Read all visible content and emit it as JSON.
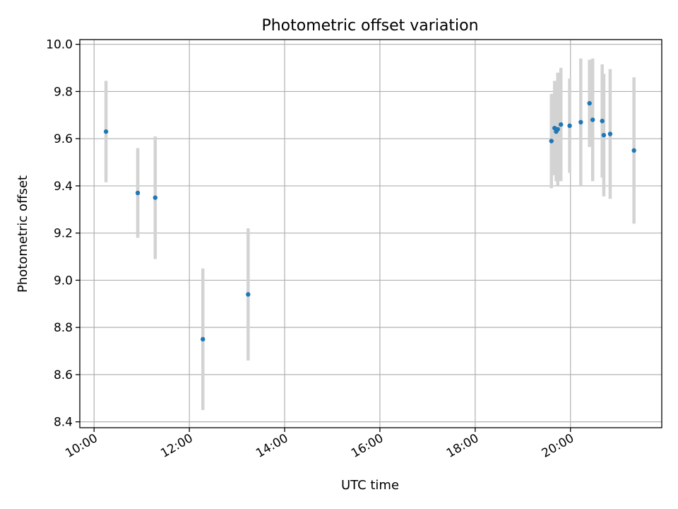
{
  "chart_data": {
    "type": "scatter",
    "title": "Photometric offset variation",
    "xlabel": "UTC time",
    "ylabel": "Photometric offset",
    "xlim": [
      "09:42",
      "21:55"
    ],
    "ylim": [
      8.375,
      10.02
    ],
    "x_ticks": [
      "10:00",
      "12:00",
      "14:00",
      "16:00",
      "18:00",
      "20:00"
    ],
    "y_ticks": [
      8.4,
      8.6,
      8.8,
      9.0,
      9.2,
      9.4,
      9.6,
      9.8,
      10.0
    ],
    "y_tick_labels": [
      "8.4",
      "8.6",
      "8.8",
      "9.0",
      "9.2",
      "9.4",
      "9.6",
      "9.8",
      "10.0"
    ],
    "grid": true,
    "point_color": "#1f77b4",
    "errorbar_color": "#d3d3d3",
    "points": [
      {
        "x": "10:15",
        "y": 9.63,
        "err": 0.215
      },
      {
        "x": "10:55",
        "y": 9.37,
        "err": 0.19
      },
      {
        "x": "11:17",
        "y": 9.35,
        "err": 0.26
      },
      {
        "x": "12:17",
        "y": 8.75,
        "err": 0.3
      },
      {
        "x": "13:14",
        "y": 8.94,
        "err": 0.28
      },
      {
        "x": "19:36",
        "y": 9.59,
        "err": 0.2
      },
      {
        "x": "19:40",
        "y": 9.645,
        "err": 0.2
      },
      {
        "x": "19:42",
        "y": 9.63,
        "err": 0.21
      },
      {
        "x": "19:44",
        "y": 9.64,
        "err": 0.24
      },
      {
        "x": "19:48",
        "y": 9.66,
        "err": 0.24
      },
      {
        "x": "19:59",
        "y": 9.655,
        "err": 0.2
      },
      {
        "x": "20:13",
        "y": 9.67,
        "err": 0.27
      },
      {
        "x": "20:24",
        "y": 9.75,
        "err": 0.185
      },
      {
        "x": "20:28",
        "y": 9.68,
        "err": 0.26
      },
      {
        "x": "20:40",
        "y": 9.675,
        "err": 0.24
      },
      {
        "x": "20:42",
        "y": 9.615,
        "err": 0.26
      },
      {
        "x": "20:50",
        "y": 9.62,
        "err": 0.275
      },
      {
        "x": "21:20",
        "y": 9.55,
        "err": 0.31
      }
    ]
  }
}
